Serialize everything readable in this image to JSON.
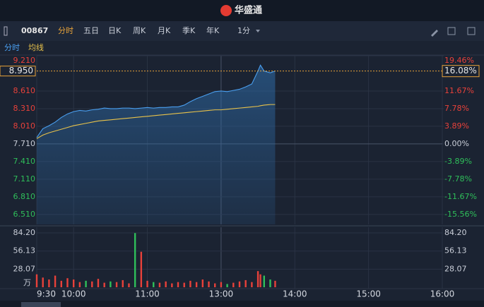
{
  "header": {
    "brand": "华盛通"
  },
  "toolbar": {
    "code": "00867",
    "tabs": [
      "分时",
      "五日",
      "日K",
      "周K",
      "月K",
      "季K",
      "年K"
    ],
    "interval": "1分"
  },
  "chart_data": [
    {
      "type": "line",
      "x": [
        0,
        5,
        10,
        15,
        20,
        25,
        30,
        35,
        40,
        45,
        50,
        55,
        60,
        65,
        70,
        75,
        80,
        85,
        90,
        95,
        100,
        105,
        110,
        115,
        120,
        125,
        130,
        135,
        140,
        145,
        150,
        155,
        160,
        165,
        170,
        175,
        180,
        182,
        185,
        190,
        194
      ],
      "xlim": [
        0,
        330
      ],
      "series": [
        {
          "name": "分时",
          "color": "#4a9ff0",
          "values": [
            7.82,
            7.97,
            8.02,
            8.08,
            8.16,
            8.22,
            8.26,
            8.28,
            8.27,
            8.29,
            8.3,
            8.32,
            8.31,
            8.31,
            8.32,
            8.32,
            8.31,
            8.32,
            8.33,
            8.32,
            8.33,
            8.33,
            8.34,
            8.34,
            8.37,
            8.43,
            8.48,
            8.52,
            8.56,
            8.6,
            8.61,
            8.6,
            8.62,
            8.64,
            8.68,
            8.73,
            8.95,
            9.05,
            8.95,
            8.92,
            8.95
          ]
        },
        {
          "name": "均线",
          "color": "#e8c24a",
          "values": [
            7.8,
            7.86,
            7.9,
            7.93,
            7.96,
            7.99,
            8.02,
            8.04,
            8.06,
            8.08,
            8.1,
            8.11,
            8.12,
            8.13,
            8.14,
            8.15,
            8.16,
            8.17,
            8.18,
            8.19,
            8.2,
            8.21,
            8.22,
            8.23,
            8.24,
            8.25,
            8.26,
            8.27,
            8.28,
            8.29,
            8.29,
            8.3,
            8.31,
            8.32,
            8.33,
            8.34,
            8.35,
            8.36,
            8.37,
            8.38,
            8.38
          ]
        }
      ],
      "ylim": [
        6.34,
        9.21
      ],
      "yticks": [
        {
          "value": 9.21,
          "label": "9.210"
        },
        {
          "value": 8.61,
          "label": "8.610"
        },
        {
          "value": 8.31,
          "label": "8.310"
        },
        {
          "value": 8.01,
          "label": "8.010"
        },
        {
          "value": 7.71,
          "label": "7.710"
        },
        {
          "value": 7.41,
          "label": "7.410"
        },
        {
          "value": 7.11,
          "label": "7.110"
        },
        {
          "value": 6.81,
          "label": "6.810"
        },
        {
          "value": 6.51,
          "label": "6.510"
        }
      ],
      "y2lim": [
        -17.77,
        19.46
      ],
      "y2ticks": [
        {
          "value": 19.46,
          "label": "19.46%"
        },
        {
          "value": 11.67,
          "label": "11.67%"
        },
        {
          "value": 7.78,
          "label": "7.78%"
        },
        {
          "value": 3.89,
          "label": "3.89%"
        },
        {
          "value": 0,
          "label": "0.00%"
        },
        {
          "value": -3.89,
          "label": "-3.89%"
        },
        {
          "value": -7.78,
          "label": "-7.78%"
        },
        {
          "value": -11.67,
          "label": "-11.67%"
        },
        {
          "value": -15.56,
          "label": "-15.56%"
        }
      ],
      "last_price": {
        "value": 8.95,
        "label": "8.950"
      },
      "last_change": {
        "value": 16.08,
        "label": "16.08%"
      },
      "grid": true
    },
    {
      "type": "bar",
      "x": [
        0,
        5,
        10,
        15,
        20,
        25,
        30,
        35,
        40,
        45,
        50,
        55,
        60,
        65,
        70,
        75,
        80,
        85,
        90,
        95,
        100,
        105,
        110,
        115,
        120,
        125,
        130,
        135,
        140,
        145,
        150,
        155,
        160,
        165,
        170,
        175,
        180,
        182,
        185,
        190,
        194
      ],
      "xlim": [
        0,
        330
      ],
      "values": [
        20,
        15,
        12,
        18,
        10,
        14,
        12,
        8,
        10,
        9,
        13,
        7,
        9,
        8,
        11,
        6,
        84,
        55,
        10,
        8,
        7,
        9,
        6,
        8,
        7,
        10,
        8,
        12,
        9,
        6,
        8,
        5,
        7,
        9,
        11,
        8,
        25,
        20,
        18,
        12,
        10
      ],
      "up_color": "#e8413a",
      "down_color": "#2fbf5a",
      "ylim": [
        0,
        93
      ],
      "yticks": [
        {
          "value": 84.2,
          "label": "84.20"
        },
        {
          "value": 56.13,
          "label": "56.13"
        },
        {
          "value": 28.07,
          "label": "28.07"
        }
      ],
      "y_unit": "万",
      "xticks": [
        {
          "value": 0,
          "label": "9:30"
        },
        {
          "value": 30,
          "label": "10:00"
        },
        {
          "value": 90,
          "label": "11:00"
        },
        {
          "value": 150,
          "label": "13:00"
        },
        {
          "value": 210,
          "label": "14:00"
        },
        {
          "value": 270,
          "label": "15:00"
        },
        {
          "value": 330,
          "label": "16:00"
        }
      ],
      "grid": true
    }
  ]
}
